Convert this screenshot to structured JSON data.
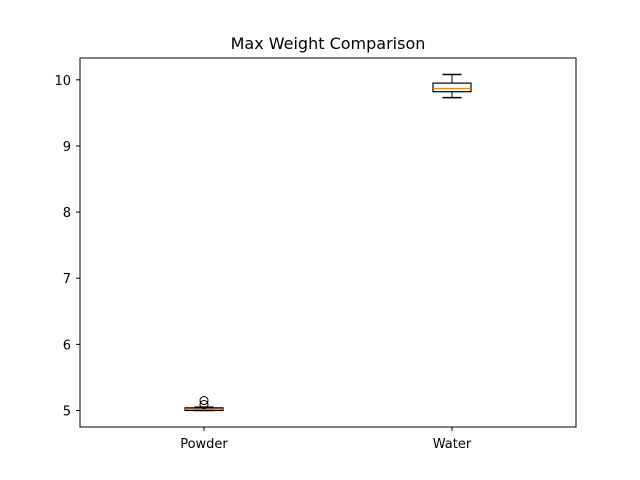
{
  "chart_data": {
    "type": "boxplot",
    "title": "Max Weight Comparison",
    "xlabel": "",
    "ylabel": "",
    "categories": [
      "Powder",
      "Water"
    ],
    "ylim": [
      4.75,
      10.33
    ],
    "yticks": [
      5,
      6,
      7,
      8,
      9,
      10
    ],
    "grid": false,
    "boxes": [
      {
        "name": "Powder",
        "whisker_low": 5.0,
        "q1": 5.0,
        "median": 5.02,
        "q3": 5.04,
        "whisker_high": 5.05,
        "fliers": [
          5.09,
          5.15
        ]
      },
      {
        "name": "Water",
        "whisker_low": 9.73,
        "q1": 9.82,
        "median": 9.87,
        "q3": 9.95,
        "whisker_high": 10.08,
        "fliers": []
      }
    ],
    "colors": {
      "box": "#000000",
      "median": "#ff7f0e",
      "flier": "#000000"
    }
  }
}
